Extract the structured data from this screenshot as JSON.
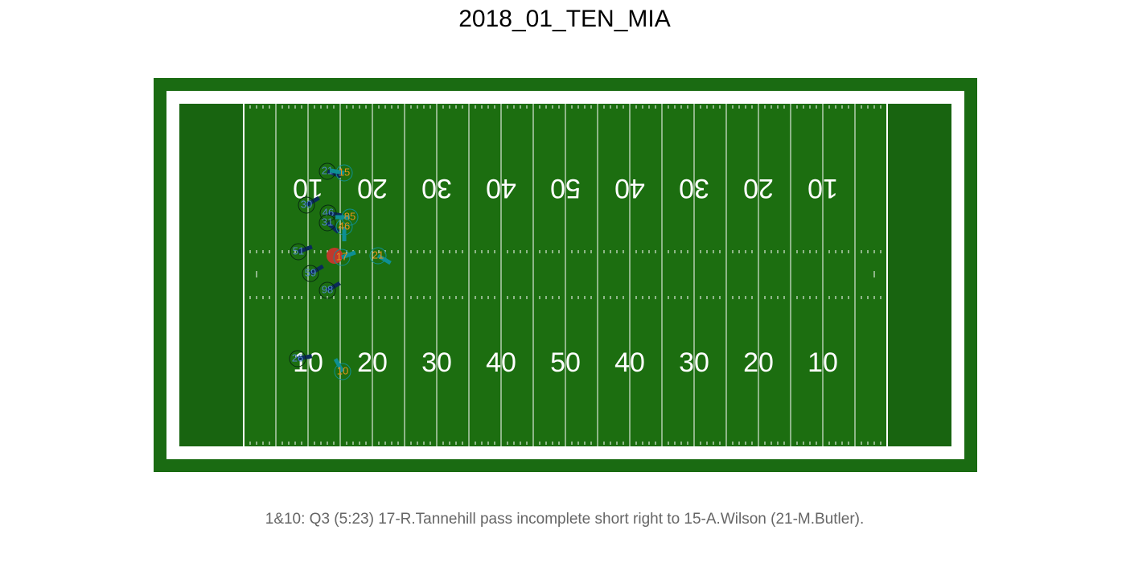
{
  "header": {
    "title": "2018_01_TEN_MIA"
  },
  "field": {
    "yard_numbers": [
      "10",
      "20",
      "30",
      "40",
      "50",
      "40",
      "30",
      "20",
      "10"
    ]
  },
  "players": [
    {
      "number": "21",
      "team": "defense"
    },
    {
      "number": "30",
      "team": "defense"
    },
    {
      "number": "46",
      "team": "defense"
    },
    {
      "number": "31",
      "team": "defense"
    },
    {
      "number": "51",
      "team": "defense"
    },
    {
      "number": "59",
      "team": "defense"
    },
    {
      "number": "98",
      "team": "defense"
    },
    {
      "number": "26",
      "team": "defense"
    },
    {
      "number": "15",
      "team": "offense"
    },
    {
      "number": "85",
      "team": "offense"
    },
    {
      "number": "46",
      "team": "offense"
    },
    {
      "number": "17",
      "team": "offense"
    },
    {
      "number": "21",
      "team": "offense"
    },
    {
      "number": "10",
      "team": "offense"
    }
  ],
  "caption": "1&10: Q3 (5:23) 17-R.Tannehill pass incomplete short right to 15-A.Wilson (21-M.Butler)."
}
